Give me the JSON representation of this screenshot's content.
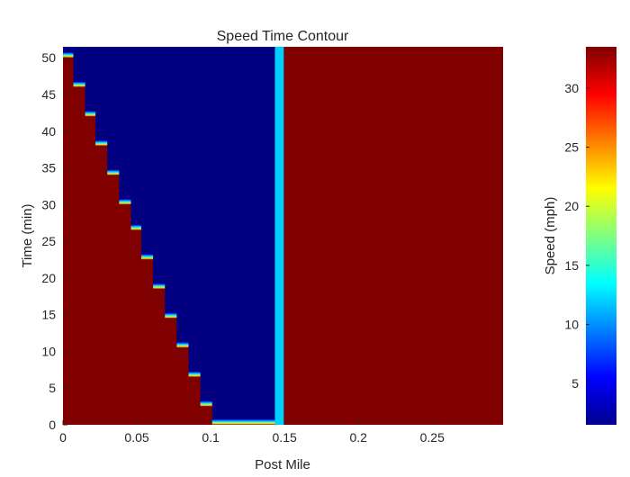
{
  "chart_data": {
    "type": "heatmap",
    "title": "Speed Time Contour",
    "xlabel": "Post Mile",
    "ylabel": "Time (min)",
    "colorbar_label": "Speed (mph)",
    "colormap": "jet",
    "xlim": [
      0,
      0.298
    ],
    "ylim": [
      0,
      51.5
    ],
    "clim": [
      1.5,
      33.5
    ],
    "x_ticks": [
      0,
      0.05,
      0.1,
      0.15,
      0.2,
      0.25
    ],
    "x_tick_labels": [
      "0",
      "0.05",
      "0.1",
      "0.15",
      "0.2",
      "0.25"
    ],
    "y_ticks": [
      0,
      5,
      10,
      15,
      20,
      25,
      30,
      35,
      40,
      45,
      50
    ],
    "y_tick_labels": [
      "0",
      "5",
      "10",
      "15",
      "20",
      "25",
      "30",
      "35",
      "40",
      "45",
      "50"
    ],
    "colorbar_ticks": [
      5,
      10,
      15,
      20,
      25,
      30
    ],
    "colorbar_tick_labels": [
      "5",
      "10",
      "15",
      "20",
      "25",
      "30"
    ],
    "free_flow_speed": 33.5,
    "queue_speed": 1.5,
    "queue_front_post_mile": 0.1435,
    "stripe": {
      "x_start": 0.1435,
      "x_end": 0.1495,
      "speed": 12
    },
    "shockwave_steps": [
      {
        "x_start": 0.0,
        "x_end": 0.007,
        "t": 50.0
      },
      {
        "x_start": 0.007,
        "x_end": 0.015,
        "t": 46.0
      },
      {
        "x_start": 0.015,
        "x_end": 0.022,
        "t": 42.0
      },
      {
        "x_start": 0.022,
        "x_end": 0.03,
        "t": 38.0
      },
      {
        "x_start": 0.03,
        "x_end": 0.038,
        "t": 34.0
      },
      {
        "x_start": 0.038,
        "x_end": 0.046,
        "t": 30.0
      },
      {
        "x_start": 0.046,
        "x_end": 0.053,
        "t": 26.5
      },
      {
        "x_start": 0.053,
        "x_end": 0.061,
        "t": 22.5
      },
      {
        "x_start": 0.061,
        "x_end": 0.069,
        "t": 18.5
      },
      {
        "x_start": 0.069,
        "x_end": 0.077,
        "t": 14.5
      },
      {
        "x_start": 0.077,
        "x_end": 0.085,
        "t": 10.5
      },
      {
        "x_start": 0.085,
        "x_end": 0.093,
        "t": 6.5
      },
      {
        "x_start": 0.093,
        "x_end": 0.101,
        "t": 2.5
      },
      {
        "x_start": 0.101,
        "x_end": 0.1435,
        "t": 0.0
      }
    ]
  }
}
